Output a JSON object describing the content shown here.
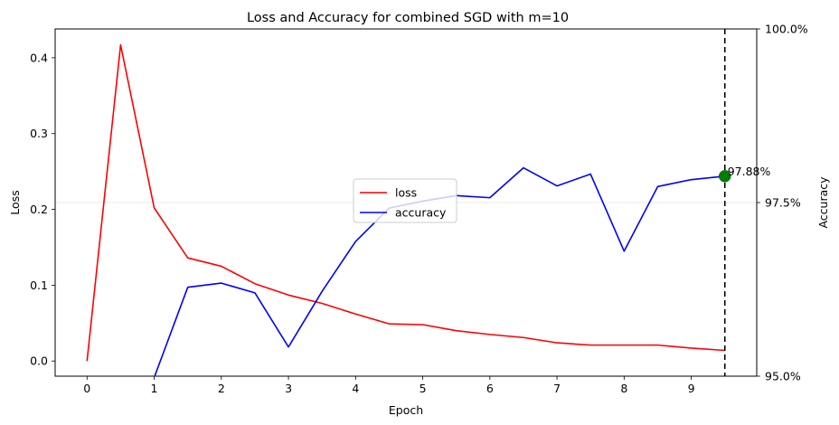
{
  "chart_data": {
    "type": "line",
    "title": "Loss and Accuracy for combined SGD with m=10",
    "xlabel": "Epoch",
    "ylabel_left": "Loss",
    "ylabel_right": "Accuracy",
    "xlim": [
      -0.475,
      9.975
    ],
    "ylim_left": [
      -0.02,
      0.438
    ],
    "ylim_right": [
      95.0,
      100.0
    ],
    "x_ticks": [
      0,
      1,
      2,
      3,
      4,
      5,
      6,
      7,
      8,
      9
    ],
    "x_tick_labels": [
      "0",
      "1",
      "2",
      "3",
      "4",
      "5",
      "6",
      "7",
      "8",
      "9"
    ],
    "y_left_ticks": [
      0.0,
      0.1,
      0.2,
      0.3,
      0.4
    ],
    "y_left_tick_labels": [
      "0.0",
      "0.1",
      "0.2",
      "0.3",
      "0.4"
    ],
    "y_right_ticks": [
      95.0,
      97.5,
      100.0
    ],
    "y_right_tick_labels": [
      "95.0%",
      "97.5%",
      "100.0%"
    ],
    "grid": "horizontal line at 97.5% on right axis",
    "legend_position": "center-right",
    "x": [
      0,
      0.5,
      1,
      1.5,
      2,
      2.5,
      3,
      3.5,
      4,
      4.5,
      5,
      5.5,
      6,
      6.5,
      7,
      7.5,
      8,
      8.5,
      9,
      9.5
    ],
    "series": [
      {
        "name": "loss",
        "axis": "left",
        "color": "#ff0000",
        "values": [
          0.0,
          0.417,
          0.202,
          0.136,
          0.125,
          0.102,
          0.087,
          0.076,
          0.062,
          0.049,
          0.048,
          0.04,
          0.035,
          0.031,
          0.024,
          0.021,
          0.021,
          0.021,
          0.017,
          0.014
        ]
      },
      {
        "name": "accuracy",
        "axis": "right",
        "color": "#0000ff",
        "values": [
          94.8,
          94.8,
          94.98,
          96.28,
          96.34,
          96.2,
          95.42,
          96.22,
          96.94,
          97.42,
          97.52,
          97.6,
          97.57,
          98.0,
          97.74,
          97.91,
          96.8,
          97.73,
          97.83,
          97.88
        ]
      }
    ],
    "marker": {
      "x": 9.5,
      "y": 97.88,
      "axis": "right",
      "color": "#008000",
      "label": "97.88%"
    },
    "vline": {
      "x": 9.5,
      "style": "dashed",
      "color": "#000000"
    }
  }
}
